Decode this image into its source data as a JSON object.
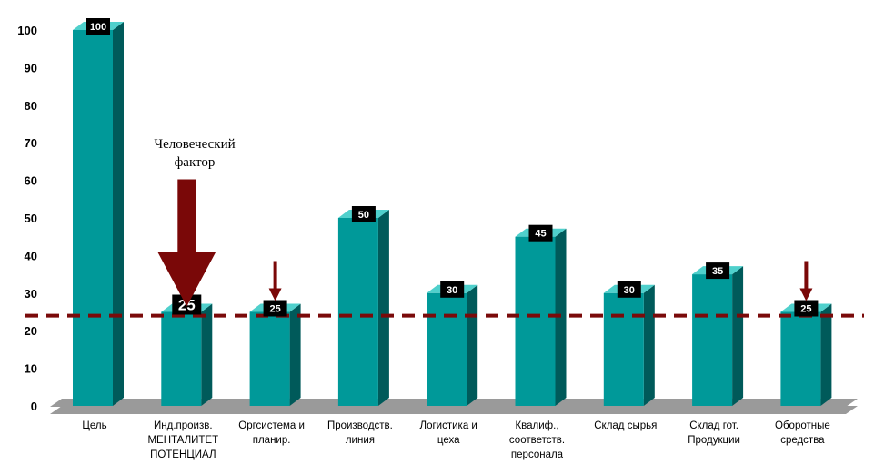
{
  "chart_data": {
    "type": "bar",
    "categories": [
      [
        "Цель"
      ],
      [
        "Инд.произв.",
        "МЕНТАЛИТЕТ",
        "ПОТЕНЦИАЛ"
      ],
      [
        "Оргсистема и",
        "планир."
      ],
      [
        "Производств.",
        "линия"
      ],
      [
        "Логистика и",
        "цеха"
      ],
      [
        "Квалиф.,",
        "соответств.",
        "персонала"
      ],
      [
        "Склад сырья"
      ],
      [
        "Склад гот.",
        "Продукции"
      ],
      [
        "Оборотные",
        "средства"
      ]
    ],
    "values": [
      100,
      25,
      25,
      50,
      30,
      45,
      30,
      35,
      25
    ],
    "ylim": [
      0,
      100
    ],
    "yticks": [
      0,
      10,
      20,
      30,
      40,
      50,
      60,
      70,
      80,
      90,
      100
    ],
    "reference_line": 24,
    "annotation": [
      "Человеческий",
      "фактор"
    ],
    "highlight_label_index": 1,
    "arrows_on": [
      1,
      2,
      8
    ],
    "colors": {
      "bar_front": "#009999",
      "bar_top": "#4fd0cc",
      "bar_side": "#005a5a",
      "floor": "#9a9a9a",
      "floor_side": "#6f6f6f",
      "reference_line": "#7a0a0a",
      "arrow": "#7a0808",
      "label_bg": "#000000",
      "label_text": "#ffffff",
      "highlight_text": "#ff2222"
    }
  }
}
